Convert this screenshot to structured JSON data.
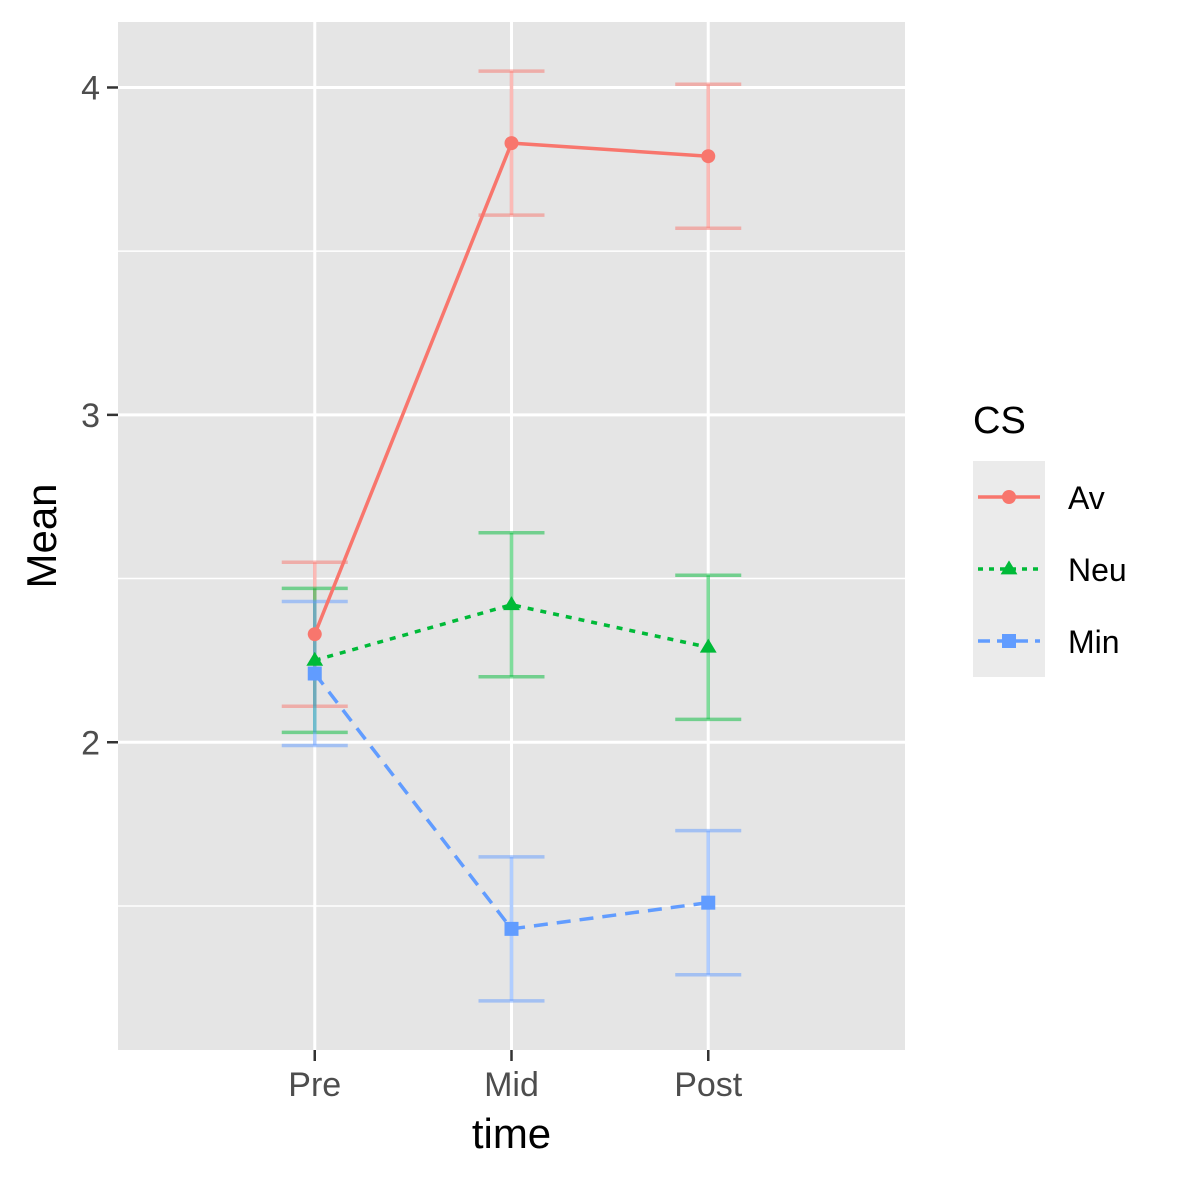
{
  "chart_data": {
    "type": "line",
    "title": "",
    "xlabel": "time",
    "ylabel": "Mean",
    "categories": [
      "Pre",
      "Mid",
      "Post"
    ],
    "ylim": [
      1.06,
      4.2
    ],
    "y_major_ticks": [
      2,
      3,
      4
    ],
    "y_major_tick_labels": [
      "2",
      "3",
      "4"
    ],
    "y_minor_ticks": [
      1.5,
      2.5,
      3.5
    ],
    "grid": true,
    "legend": {
      "title": "CS",
      "position": "right"
    },
    "series": [
      {
        "name": "Av",
        "color": "#F8766D",
        "marker": "circle",
        "linestyle": "solid",
        "values": [
          2.33,
          3.83,
          3.79
        ],
        "ci_low": [
          2.11,
          3.61,
          3.57
        ],
        "ci_high": [
          2.55,
          4.05,
          4.01
        ]
      },
      {
        "name": "Neu",
        "color": "#00BA38",
        "marker": "triangle",
        "linestyle": "dotted",
        "values": [
          2.25,
          2.42,
          2.29
        ],
        "ci_low": [
          2.03,
          2.2,
          2.07
        ],
        "ci_high": [
          2.47,
          2.64,
          2.51
        ]
      },
      {
        "name": "Min",
        "color": "#619CFF",
        "marker": "square",
        "linestyle": "dashed",
        "values": [
          2.21,
          1.43,
          1.51
        ],
        "ci_low": [
          1.99,
          1.21,
          1.29
        ],
        "ci_high": [
          2.43,
          1.65,
          1.73
        ]
      }
    ]
  }
}
